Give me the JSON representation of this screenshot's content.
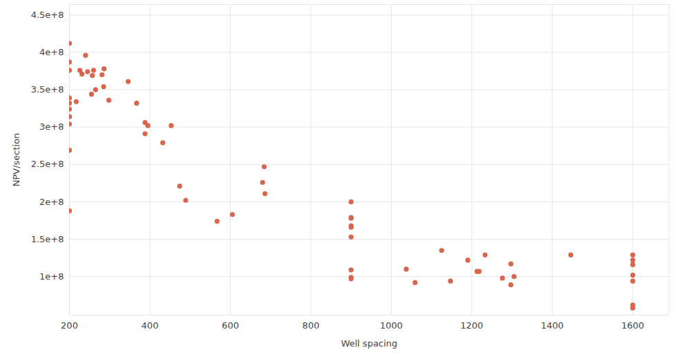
{
  "chart_data": {
    "type": "scatter",
    "x_label": "Well spacing",
    "y_label": "NPV/section",
    "color": "#d9654d",
    "marker": "circle",
    "grid": true,
    "xlim": [
      200,
      1690
    ],
    "ylim": [
      48500000,
      464000000
    ],
    "xticks": [
      200,
      400,
      600,
      800,
      1000,
      1200,
      1400,
      1600
    ],
    "yticks": [
      {
        "value": 100000000,
        "label": "1e+8"
      },
      {
        "value": 150000000,
        "label": "1.5e+8"
      },
      {
        "value": 200000000,
        "label": "2e+8"
      },
      {
        "value": 250000000,
        "label": "2.5e+8"
      },
      {
        "value": 300000000,
        "label": "3e+8"
      },
      {
        "value": 350000000,
        "label": "3.5e+8"
      },
      {
        "value": 400000000,
        "label": "4e+8"
      },
      {
        "value": 450000000,
        "label": "4.5e+8"
      }
    ],
    "x": [
      200,
      200,
      200,
      200,
      200,
      200,
      200,
      200,
      200,
      200,
      217,
      226,
      231,
      240,
      245,
      255,
      257,
      260,
      265,
      281,
      285,
      286,
      298,
      346,
      367,
      388,
      388,
      395,
      432,
      453,
      474,
      489,
      567,
      605,
      680,
      684,
      686,
      900,
      900,
      900,
      900,
      900,
      900,
      900,
      900,
      900,
      1037,
      1059,
      1125,
      1147,
      1190,
      1213,
      1218,
      1233,
      1276,
      1297,
      1297,
      1305,
      1446,
      1600,
      1600,
      1600,
      1600,
      1600,
      1600,
      1600
    ],
    "values": [
      412000000,
      387000000,
      376000000,
      339000000,
      332000000,
      324000000,
      314000000,
      304000000,
      269000000,
      188000000,
      334000000,
      376000000,
      371000000,
      396000000,
      374000000,
      344000000,
      369000000,
      376000000,
      350000000,
      370000000,
      354000000,
      378000000,
      336000000,
      361000000,
      332000000,
      306000000,
      291000000,
      302000000,
      279000000,
      302000000,
      221000000,
      202000000,
      174000000,
      183000000,
      226000000,
      247000000,
      211000000,
      200000000,
      179000000,
      178000000,
      168000000,
      166000000,
      153000000,
      109000000,
      99000000,
      97000000,
      110000000,
      92000000,
      135000000,
      94000000,
      122000000,
      107000000,
      107000000,
      129000000,
      98000000,
      89000000,
      117000000,
      100000000,
      129000000,
      129000000,
      122000000,
      116000000,
      102000000,
      94000000,
      62000000,
      58000000
    ]
  }
}
